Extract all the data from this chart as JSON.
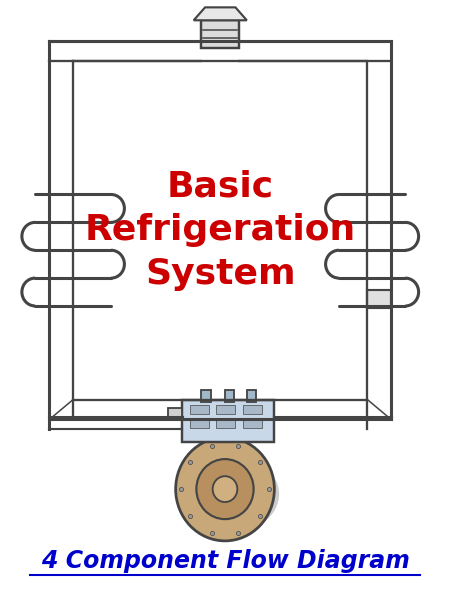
{
  "title": "Basic\nRefrigeration\nSystem",
  "title_color": "#CC0000",
  "subtitle": "4 Component Flow Diagram",
  "subtitle_color": "#0000CC",
  "bg_color": "#FFFFFF",
  "line_color": "#444444",
  "line_width": 2.2,
  "fig_width": 4.5,
  "fig_height": 6.0
}
